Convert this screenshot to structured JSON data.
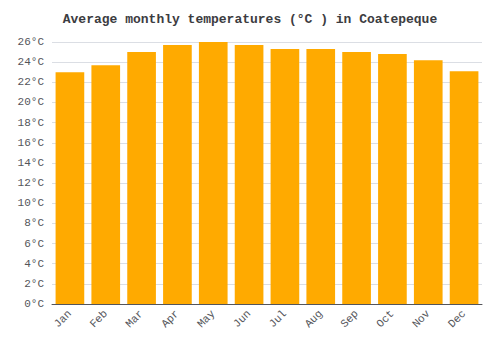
{
  "chart_data": {
    "type": "bar",
    "title": "Average monthly temperatures (°C ) in Coatepeque",
    "categories": [
      "Jan",
      "Feb",
      "Mar",
      "Apr",
      "May",
      "Jun",
      "Jul",
      "Aug",
      "Sep",
      "Oct",
      "Nov",
      "Dec"
    ],
    "values": [
      23.0,
      23.7,
      25.0,
      25.7,
      26.0,
      25.7,
      25.3,
      25.3,
      25.0,
      24.8,
      24.2,
      23.1
    ],
    "color": "#FFAA00",
    "ylim": [
      0,
      26
    ],
    "yticks": [
      {
        "value": 0,
        "label": "0°C"
      },
      {
        "value": 2,
        "label": "2°C"
      },
      {
        "value": 4,
        "label": "4°C"
      },
      {
        "value": 6,
        "label": "6°C"
      },
      {
        "value": 8,
        "label": "8°C"
      },
      {
        "value": 10,
        "label": "10°C"
      },
      {
        "value": 12,
        "label": "12°C"
      },
      {
        "value": 14,
        "label": "14°C"
      },
      {
        "value": 16,
        "label": "16°C"
      },
      {
        "value": 18,
        "label": "18°C"
      },
      {
        "value": 20,
        "label": "20°C"
      },
      {
        "value": 22,
        "label": "22°C"
      },
      {
        "value": 24,
        "label": "24°C"
      },
      {
        "value": 26,
        "label": "26°C"
      }
    ],
    "grid": true
  }
}
